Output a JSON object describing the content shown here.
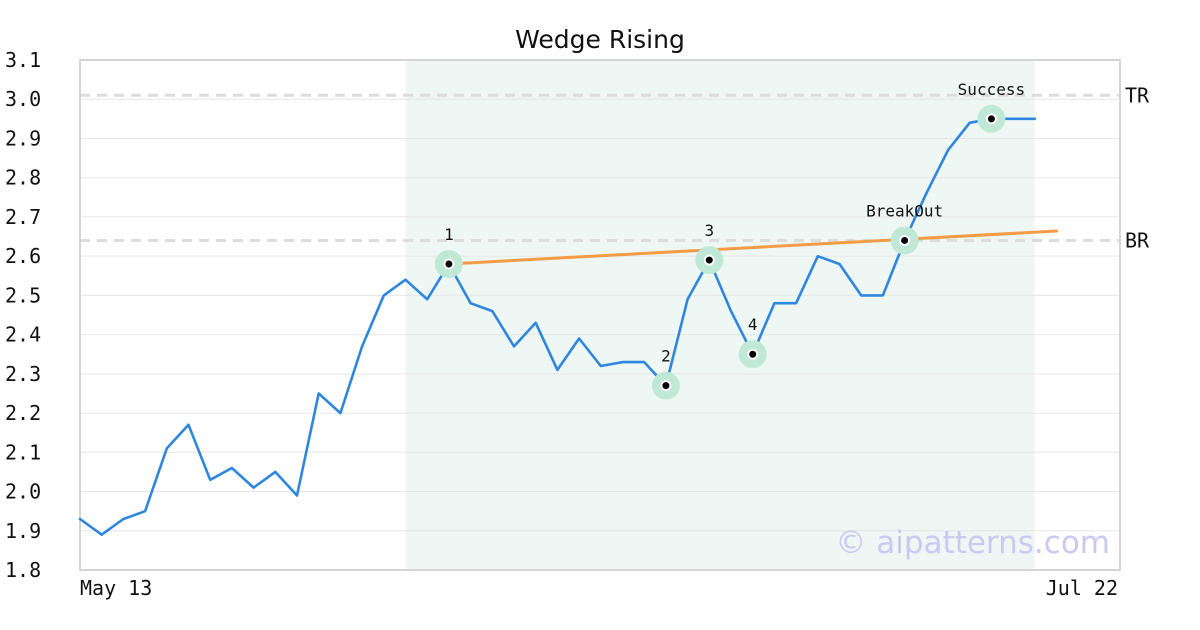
{
  "chart_data": {
    "type": "line",
    "title": "Wedge Rising",
    "x_labels": [
      "May 13",
      "Jul 22"
    ],
    "ylim": [
      1.8,
      3.1
    ],
    "yticks": [
      "1.8",
      "1.9",
      "2.0",
      "2.1",
      "2.2",
      "2.3",
      "2.4",
      "2.5",
      "2.6",
      "2.7",
      "2.8",
      "2.9",
      "3.0",
      "3.1"
    ],
    "grid": true,
    "series": [
      {
        "color": "#2e86de",
        "values": [
          1.93,
          1.89,
          1.93,
          1.95,
          2.11,
          2.17,
          2.03,
          2.06,
          2.01,
          2.05,
          1.99,
          2.25,
          2.2,
          2.37,
          2.5,
          2.54,
          2.49,
          2.58,
          2.48,
          2.46,
          2.37,
          2.43,
          2.31,
          2.39,
          2.32,
          2.33,
          2.33,
          2.27,
          2.49,
          2.59,
          2.46,
          2.35,
          2.48,
          2.48,
          2.6,
          2.58,
          2.5,
          2.5,
          2.64,
          2.76,
          2.87,
          2.94,
          2.95,
          2.95,
          2.95
        ]
      }
    ],
    "pattern_region": {
      "start_index": 15,
      "end_index": 44,
      "color": "#eef7f3"
    },
    "trendline": {
      "color": "#f39c45",
      "start": {
        "index": 17,
        "y": 2.58
      },
      "end": {
        "index": 45,
        "y": 2.664
      }
    },
    "horizontal_lines": [
      {
        "label": "TR",
        "y": 3.01
      },
      {
        "label": "BR",
        "y": 2.64
      }
    ],
    "points": [
      {
        "label": "1",
        "index": 17,
        "y": 2.58,
        "label_pos": "above"
      },
      {
        "label": "2",
        "index": 27,
        "y": 2.27,
        "label_pos": "above"
      },
      {
        "label": "3",
        "index": 29,
        "y": 2.59,
        "label_pos": "above"
      },
      {
        "label": "4",
        "index": 31,
        "y": 2.35,
        "label_pos": "above"
      },
      {
        "label": "BreakOut",
        "index": 38,
        "y": 2.64,
        "label_pos": "above"
      },
      {
        "label": "Success",
        "index": 42,
        "y": 2.95,
        "label_pos": "above"
      }
    ],
    "watermark": "© aipatterns.com"
  }
}
